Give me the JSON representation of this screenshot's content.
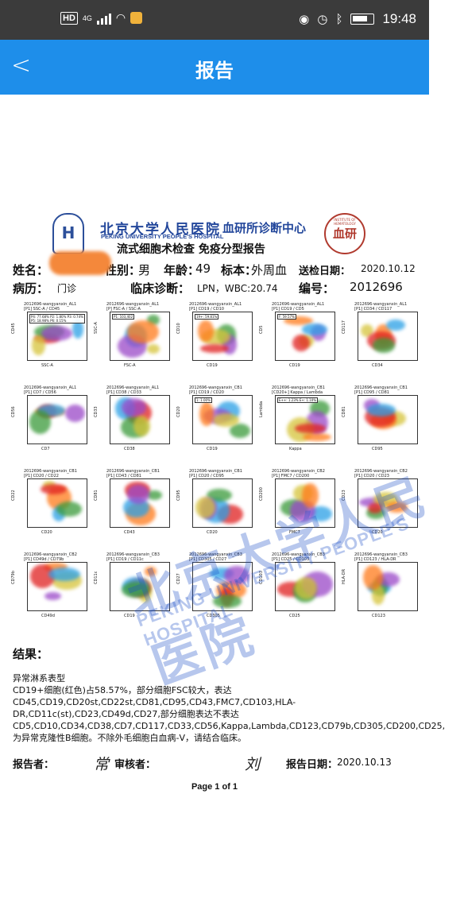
{
  "status_bar": {
    "network": "HD",
    "signal_gen": "4G",
    "time": "19:48"
  },
  "nav": {
    "back_icon": "chevron-left-icon",
    "title": "报告"
  },
  "report": {
    "hospital_cn": "北京大学人民医院",
    "hospital_en": "PEKING UNIVERSITY PEOPLE'S HOSPITAL",
    "center_name": "血研所诊断中心",
    "subtitle": "流式细胞术检查  免疫分型报告",
    "seal_text": "血研",
    "seal_small": "INSTITUTE OF HEMATOLOGY",
    "fields": {
      "name_label": "姓名：",
      "sex_label": "性别：",
      "sex_value": "男",
      "age_label": "年龄：",
      "age_value": "49",
      "specimen_label": "标本：",
      "specimen_value": "外周血",
      "send_date_label": "送检日期：",
      "send_date_value": "2020.10.12",
      "record_label": "病历：",
      "record_value": "门诊",
      "diagnosis_label": "临床诊断：",
      "diagnosis_value": "LPN，WBC:20.74",
      "number_label": "编号：",
      "number_value": "2012696"
    },
    "plots": [
      {
        "title": "2012696-wangyanxin_AL1\n[P1] SSC-A / CD45",
        "xlabel": "SSC-A",
        "ylabel": "CD45",
        "gates": "P4: 77.68%  P2: 1.80%  P3: 0.74%  P5: 18.98%  P6: 0.15%"
      },
      {
        "title": "2012696-wangyanxin_AL1\n[P] FSC-A / SSC-A",
        "xlabel": "FSC-A",
        "ylabel": "SSC-A",
        "gates": "P1: 103,402"
      },
      {
        "title": "2012696-wangyanxin_AL1\n[P1] CD19 / CD10",
        "xlabel": "CD19",
        "ylabel": "CD10",
        "gates": "19+: 59.81%"
      },
      {
        "title": "2012696-wangyanxin_AL1\n[P1] CD19 / CD5",
        "xlabel": "CD19",
        "ylabel": "CD5",
        "gates": "F: 59.57%"
      },
      {
        "title": "2012696-wangyanxin_AL1\n[P1] CD34 / CD117",
        "xlabel": "CD34",
        "ylabel": "CD117",
        "gates": ""
      },
      {
        "title": "2012696-wangyanxin_AL1\n[P1] CD7 / CD56",
        "xlabel": "CD7",
        "ylabel": "CD56",
        "gates": ""
      },
      {
        "title": "2012696-wangyanxin_AL1\n[P1] CD38 / CD33",
        "xlabel": "CD38",
        "ylabel": "CD33",
        "gates": ""
      },
      {
        "title": "2012696-wangyanxin_CB1\n[P1] CD19 / CD20",
        "xlabel": "CD19",
        "ylabel": "CD20",
        "gates": "1: 1.00%"
      },
      {
        "title": "2012696-wangyanxin_CB1\n[CD20+] Kappa / Lambda",
        "xlabel": "Kappa",
        "ylabel": "Lambda",
        "gates": "E++: 1.23%  E+: 1.10%"
      },
      {
        "title": "2012696-wangyanxin_CB1\n[P1] CD95 / CD81",
        "xlabel": "CD95",
        "ylabel": "CD81",
        "gates": ""
      },
      {
        "title": "2012696-wangyanxin_CB1\n[P1] CD20 / CD22",
        "xlabel": "CD20",
        "ylabel": "CD22",
        "gates": ""
      },
      {
        "title": "2012696-wangyanxin_CB1\n[P1] CD43 / CD81",
        "xlabel": "CD43",
        "ylabel": "CD81",
        "gates": ""
      },
      {
        "title": "2012696-wangyanxin_CB1\n[P1] CD20 / CD95",
        "xlabel": "CD20",
        "ylabel": "CD95",
        "gates": ""
      },
      {
        "title": "2012696-wangyanxin_CB2\n[P1] FMC7 / CD200",
        "xlabel": "FMC7",
        "ylabel": "CD200",
        "gates": ""
      },
      {
        "title": "2012696-wangyanxin_CB2\n[P1] CD20 / CD23",
        "xlabel": "CD20",
        "ylabel": "CD23",
        "gates": ""
      },
      {
        "title": "2012696-wangyanxin_CB2\n[P1] CD49d / CD79b",
        "xlabel": "CD49d",
        "ylabel": "CD79b",
        "gates": ""
      },
      {
        "title": "2012696-wangyanxin_CB3\n[P1] CD19 / CD11c",
        "xlabel": "CD19",
        "ylabel": "CD11c",
        "gates": ""
      },
      {
        "title": "2012696-wangyanxin_CB3\n[P1] CD305 / CD27",
        "xlabel": "CD305",
        "ylabel": "CD27",
        "gates": ""
      },
      {
        "title": "2012696-wangyanxin_CB3\n[P1] CD25 / CD103",
        "xlabel": "CD25",
        "ylabel": "CD103",
        "gates": ""
      },
      {
        "title": "2012696-wangyanxin_CB3\n[P1] CD123 / HLA-DR",
        "xlabel": "CD123",
        "ylabel": "HLA-DR",
        "gates": ""
      }
    ],
    "watermark_cn": "北京大学人民医院",
    "watermark_en": "PEKING UNIVERSITY PEOPLE'S HOSPITAL",
    "result_label": "结果：",
    "result_line1": "异常淋系表型",
    "result_line2": "CD19+细胞(红色)占58.57%，部分细胞FSC较大，表达CD45,CD19,CD20st,CD22st,CD81,CD95,CD43,FMC7,CD103,HLA-DR,CD11c(st),CD23,CD49d,CD27,部分细胞表达不表达CD5,CD10,CD34,CD38,CD7,CD117,CD33,CD56,Kappa,Lambda,CD123,CD79b,CD305,CD200,CD25,为异常克隆性B细胞。不除外毛细胞白血病-V，请结合临床。",
    "reporter_label": "报告者：",
    "reporter_sig": "常",
    "reviewer_label": "审核者：",
    "reviewer_sig": "刘",
    "report_date_label": "报告日期：",
    "report_date_value": "2020.10.13",
    "page_no": "Page 1 of 1",
    "colors": {
      "nav": "#1e8eea",
      "status": "#3b3b3b",
      "brand_blue": "#23479b"
    }
  }
}
